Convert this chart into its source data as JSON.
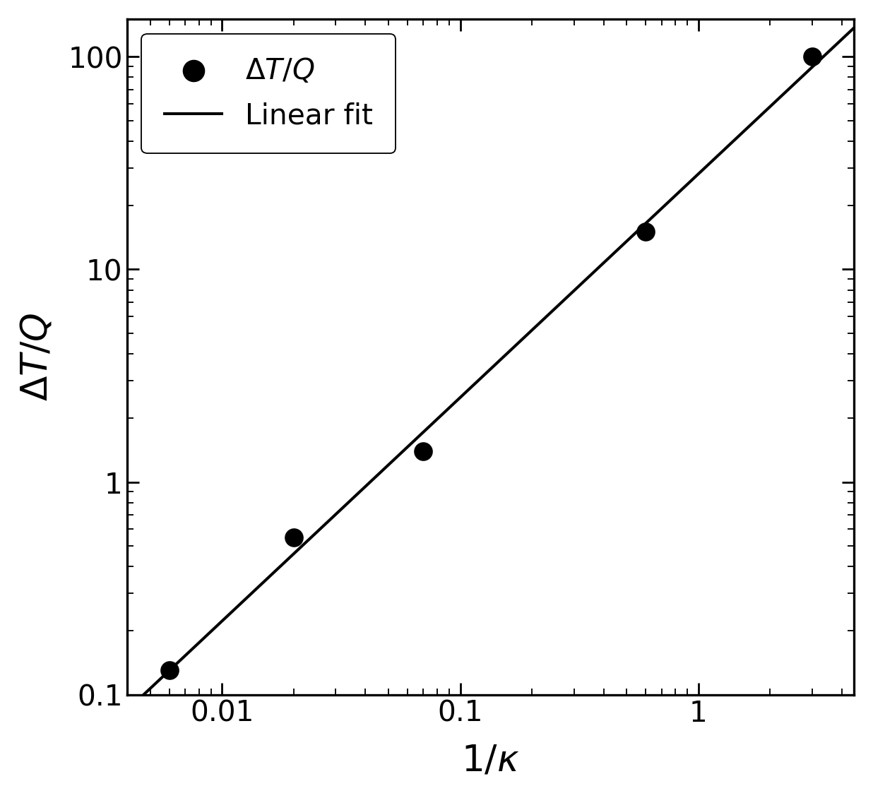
{
  "x_data": [
    0.006,
    0.02,
    0.07,
    0.6,
    3.0
  ],
  "y_data": [
    0.13,
    0.55,
    1.4,
    15.0,
    100.0
  ],
  "xlim": [
    0.004,
    4.5
  ],
  "ylim": [
    0.1,
    150
  ],
  "dot_color": "#000000",
  "line_color": "#000000",
  "background_color": "#ffffff",
  "dot_size": 180,
  "line_width": 2.2,
  "label_font_size": 28,
  "tick_font_size": 22,
  "legend_font_size": 22,
  "legend_line": "Linear fit"
}
